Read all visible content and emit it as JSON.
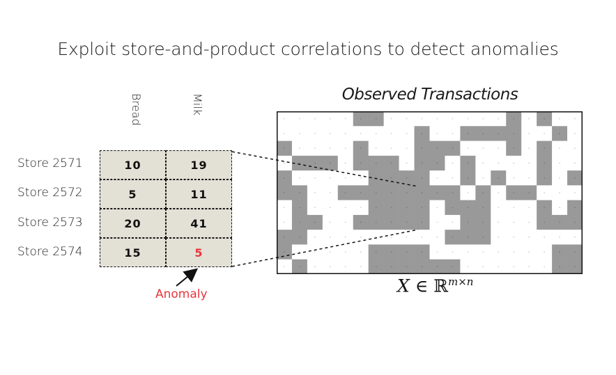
{
  "title": "Exploit store-and-product correlations to detect anomalies",
  "table": {
    "columns": [
      "Bread",
      "Milk"
    ],
    "rows": [
      {
        "store": "Store 2571",
        "values": [
          "10",
          "19"
        ]
      },
      {
        "store": "Store 2572",
        "values": [
          "5",
          "11"
        ]
      },
      {
        "store": "Store 2573",
        "values": [
          "20",
          "41"
        ]
      },
      {
        "store": "Store 2574",
        "values": [
          "15",
          "5"
        ]
      }
    ],
    "anomaly_cell": {
      "row": 3,
      "col": 1
    },
    "cell_color": "#e3e0d6",
    "anomaly_color": "#e8353a"
  },
  "anomaly_label": "Anomaly",
  "observed_title": "Observed Transactions",
  "math_label": {
    "var": "X",
    "in": "∈",
    "set": "ℝ",
    "exp": "m×n"
  },
  "matrix": {
    "rows": 11,
    "cols": 20,
    "fill_color": "#999999",
    "empty_color": "#ffffff",
    "pattern": [
      "00000110000000010100",
      "00000000010011110010",
      "10000100011100010100",
      "01110111011010000100",
      "10000011110010100101",
      "11001111111101011000",
      "01000011110111000101",
      "01100111110011000111",
      "11000000000111000000",
      "10000011110000000011",
      "01000011111100000011"
    ]
  }
}
